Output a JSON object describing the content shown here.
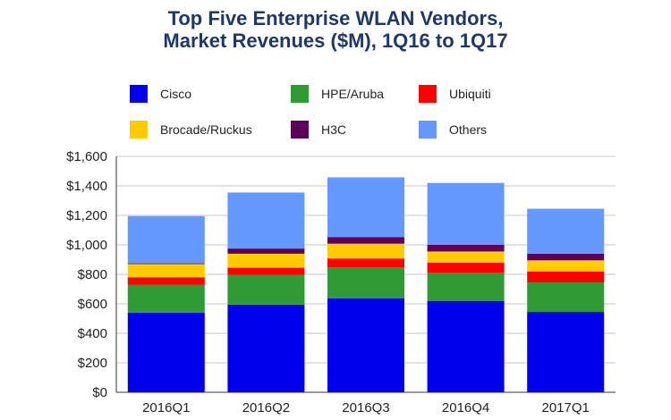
{
  "title_line1": "Top Five Enterprise WLAN Vendors,",
  "title_line2": "Market Revenues ($M), 1Q16 to 1Q17",
  "chart_data": {
    "type": "bar",
    "stacked": true,
    "title": "Top Five Enterprise WLAN Vendors, Market Revenues ($M), 1Q16 to 1Q17",
    "categories": [
      "2016Q1",
      "2016Q2",
      "2016Q3",
      "2016Q4",
      "2017Q1"
    ],
    "series": [
      {
        "name": "Cisco",
        "color": "#0000ee",
        "values": [
          540,
          595,
          638,
          620,
          545
        ]
      },
      {
        "name": "HPE/Aruba",
        "color": "#2e9b35",
        "values": [
          190,
          200,
          210,
          190,
          200
        ]
      },
      {
        "name": "Ubiquiti",
        "color": "#ff0000",
        "values": [
          50,
          50,
          60,
          70,
          75
        ]
      },
      {
        "name": "Brocade/Ruckus",
        "color": "#ffcc00",
        "values": [
          90,
          95,
          100,
          75,
          75
        ]
      },
      {
        "name": "H3C",
        "color": "#5c005c",
        "values": [
          5,
          35,
          45,
          45,
          45
        ]
      },
      {
        "name": "Others",
        "color": "#6699ff",
        "values": [
          320,
          380,
          405,
          420,
          305
        ]
      }
    ],
    "ylim": [
      0,
      1600
    ],
    "yticks": [
      0,
      200,
      400,
      600,
      800,
      1000,
      1200,
      1400,
      1600
    ],
    "ytick_labels": [
      "$0",
      "$200",
      "$400",
      "$600",
      "$800",
      "$1,000",
      "$1,200",
      "$1,400",
      "$1,600"
    ],
    "grid": true,
    "legend_position": "top",
    "xlabel": "",
    "ylabel": ""
  }
}
